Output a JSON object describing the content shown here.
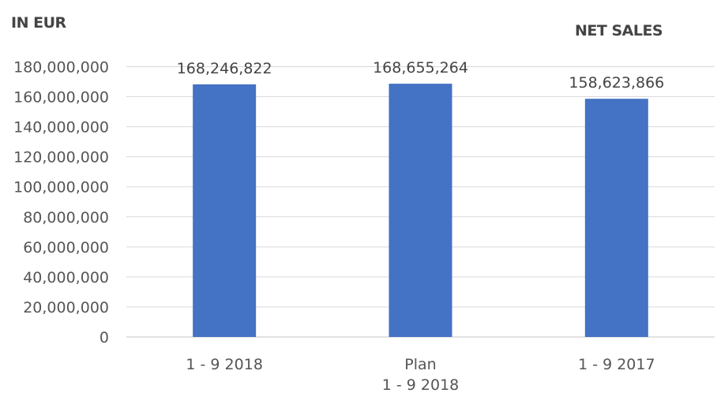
{
  "unit_label": "IN EUR",
  "chart_data": {
    "type": "bar",
    "title": "NET SALES",
    "ylabel": "IN EUR",
    "xlabel": "",
    "categories": [
      [
        "1 - 9 2018"
      ],
      [
        "Plan",
        "1 - 9 2018"
      ],
      [
        "1 - 9 2017"
      ]
    ],
    "values": [
      168246822,
      168655264,
      158623866
    ],
    "data_labels": [
      "168,246,822",
      "168,655,264",
      "158,623,866"
    ],
    "ylim": [
      0,
      180000000
    ],
    "yticks": [
      0,
      20000000,
      40000000,
      60000000,
      80000000,
      100000000,
      120000000,
      140000000,
      160000000,
      180000000
    ],
    "ytick_labels": [
      "0",
      "20,000,000",
      "40,000,000",
      "60,000,000",
      "80,000,000",
      "100,000,000",
      "120,000,000",
      "140,000,000",
      "160,000,000",
      "180,000,000"
    ],
    "grid": true,
    "legend": "none",
    "bar_color": "#4472C4",
    "grid_color": "#D9D9D9"
  }
}
